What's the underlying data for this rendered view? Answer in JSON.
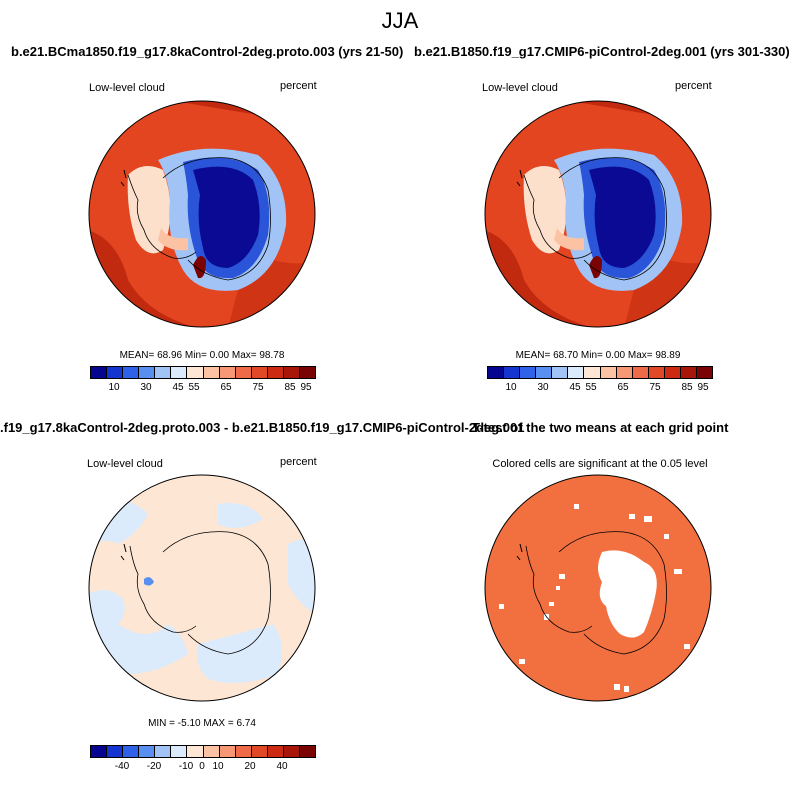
{
  "season": "JJA",
  "panels": {
    "top_left": {
      "title": "b.e21.BCma1850.f19_g17.8kaControl-2deg.proto.003 (yrs 21-50)",
      "left_label": "Low-level cloud",
      "right_label": "percent",
      "stats": "MEAN=  68.96  Min=   0.00  Max=  98.78"
    },
    "top_right": {
      "title": "b.e21.B1850.f19_g17.CMIP6-piControl-2deg.001 (yrs 301-330)",
      "left_label": "Low-level cloud",
      "right_label": "percent",
      "stats": "MEAN=  68.70  Min=   0.00  Max=  98.89"
    },
    "bottom_left": {
      "title": ".f19_g17.8kaControl-2deg.proto.003 - b.e21.B1850.f19_g17.CMIP6-piControl-2deg.001",
      "left_label": "Low-level cloud",
      "right_label": "percent",
      "stats": "MIN =  -5.10 MAX =   6.74"
    },
    "bottom_right": {
      "title": "T-test of the two means at each grid point",
      "subtitle": "Colored cells are significant at the 0.05 level"
    }
  },
  "colorbars": {
    "abs": {
      "colors": [
        "#05058f",
        "#1535d0",
        "#2f62e8",
        "#5a8ff2",
        "#a2c3f5",
        "#dcebfc",
        "#fde6d4",
        "#fbc2a3",
        "#f69876",
        "#ee6a48",
        "#e04826",
        "#cc2a12",
        "#a81509",
        "#7a0303"
      ],
      "tick_labels": [
        "10",
        "30",
        "45",
        "55",
        "65",
        "75",
        "85",
        "95"
      ]
    },
    "diff": {
      "colors": [
        "#05058f",
        "#1535d0",
        "#2f62e8",
        "#5a8ff2",
        "#a2c3f5",
        "#dcebfc",
        "#fde6d4",
        "#fbc2a3",
        "#f69876",
        "#ee6a48",
        "#e04826",
        "#cc2a12",
        "#a81509",
        "#7a0303"
      ],
      "tick_labels": [
        "-40",
        "-20",
        "-10",
        "0",
        "10",
        "20",
        "40"
      ]
    }
  },
  "map_colors": {
    "ocean_high": "#e2451f",
    "ocean_dark": "#c22a10",
    "land_low": "#0a0a94",
    "land_mid": "#2a55d8",
    "margin_light": "#fde0cc",
    "diff_pos": "#fde6d4",
    "diff_neg": "#dcebfc",
    "ttest_fill": "#f2703f",
    "insignificant": "#ffffff",
    "coast": "#000000"
  }
}
